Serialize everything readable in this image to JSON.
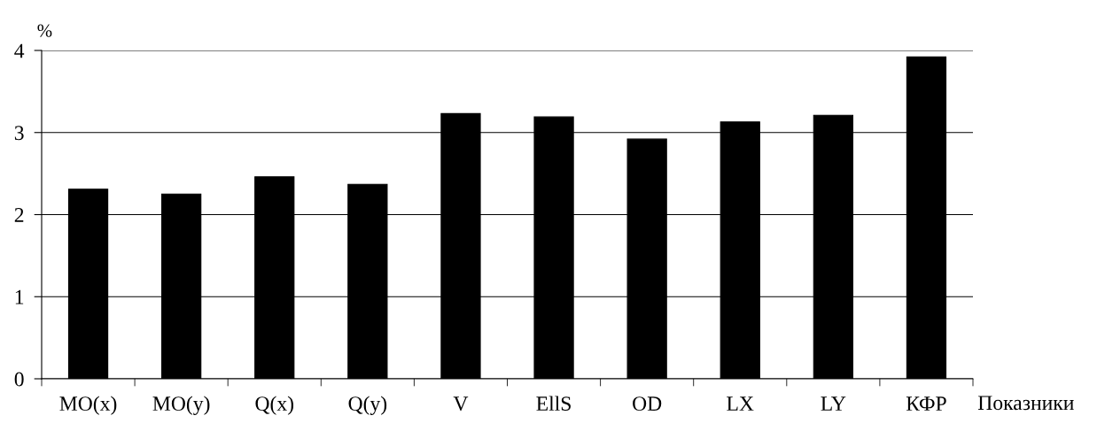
{
  "chart_data": {
    "type": "bar",
    "ylabel": "%",
    "xlabel": "Показники",
    "categories": [
      "MO(x)",
      "MO(y)",
      "Q(x)",
      "Q(y)",
      "V",
      "EllS",
      "OD",
      "LX",
      "LY",
      "КФР"
    ],
    "values": [
      2.31,
      2.25,
      2.46,
      2.37,
      3.23,
      3.19,
      2.92,
      3.13,
      3.21,
      3.92
    ],
    "color": "#000000",
    "ylim": [
      0,
      4
    ],
    "yticks": [
      0,
      1,
      2,
      3,
      4
    ],
    "grid": "y",
    "legend": false
  }
}
